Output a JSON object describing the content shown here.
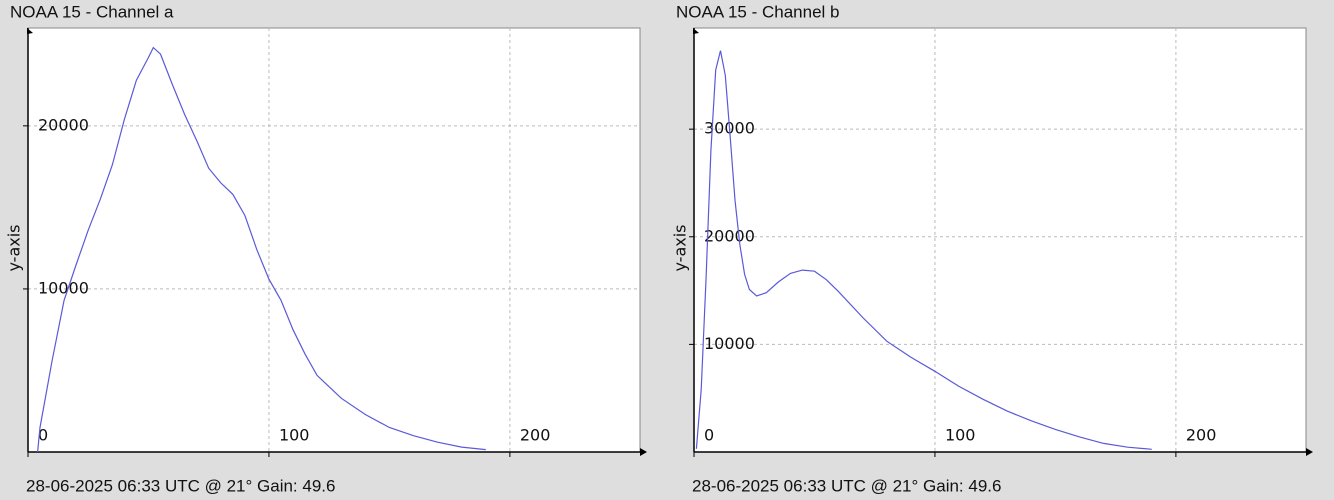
{
  "chart_data": [
    {
      "type": "line",
      "title": "NOAA 15 - Channel a",
      "footer": "28-06-2025 06:33 UTC @ 21° Gain: 49.6",
      "y_label": "y-axis",
      "x": [
        4,
        5,
        10,
        15,
        20,
        25,
        30,
        35,
        40,
        45,
        50,
        52,
        55,
        60,
        65,
        70,
        75,
        80,
        85,
        90,
        95,
        100,
        105,
        110,
        115,
        120,
        130,
        140,
        150,
        160,
        170,
        180,
        190
      ],
      "series": [
        {
          "color": "#5a5ad8",
          "values": [
            0,
            1500,
            5600,
            9300,
            11500,
            13600,
            15500,
            17600,
            20400,
            22800,
            24200,
            24800,
            24400,
            22500,
            20700,
            19100,
            17400,
            16500,
            15800,
            14500,
            12400,
            10600,
            9300,
            7500,
            6000,
            4700,
            3300,
            2300,
            1500,
            1000,
            600,
            300,
            150
          ]
        }
      ],
      "xlim": [
        0,
        254
      ],
      "ylim": [
        0,
        26000
      ],
      "xticks": [
        0,
        100,
        200
      ],
      "yticks": [
        10000,
        20000
      ],
      "grid": true
    },
    {
      "type": "line",
      "title": "NOAA 15 - Channel b",
      "footer": "28-06-2025 06:33 UTC @ 21° Gain: 49.6",
      "y_label": "y-axis",
      "x": [
        1,
        3,
        5,
        7,
        9,
        11,
        13,
        15,
        17,
        19,
        21,
        23,
        26,
        30,
        35,
        40,
        45,
        50,
        55,
        60,
        70,
        80,
        90,
        100,
        110,
        120,
        130,
        140,
        150,
        160,
        170,
        180,
        190
      ],
      "series": [
        {
          "color": "#5a5ad8",
          "values": [
            300,
            5800,
            16000,
            28000,
            35500,
            37300,
            35000,
            29400,
            23400,
            19300,
            16500,
            15100,
            14500,
            14800,
            15800,
            16600,
            16900,
            16800,
            16000,
            14900,
            12500,
            10300,
            8800,
            7500,
            6100,
            4900,
            3800,
            2900,
            2100,
            1400,
            800,
            450,
            250
          ]
        }
      ],
      "xlim": [
        0,
        254
      ],
      "ylim": [
        0,
        39400
      ],
      "xticks": [
        0,
        100,
        200
      ],
      "yticks": [
        10000,
        20000,
        30000
      ],
      "grid": true
    }
  ]
}
